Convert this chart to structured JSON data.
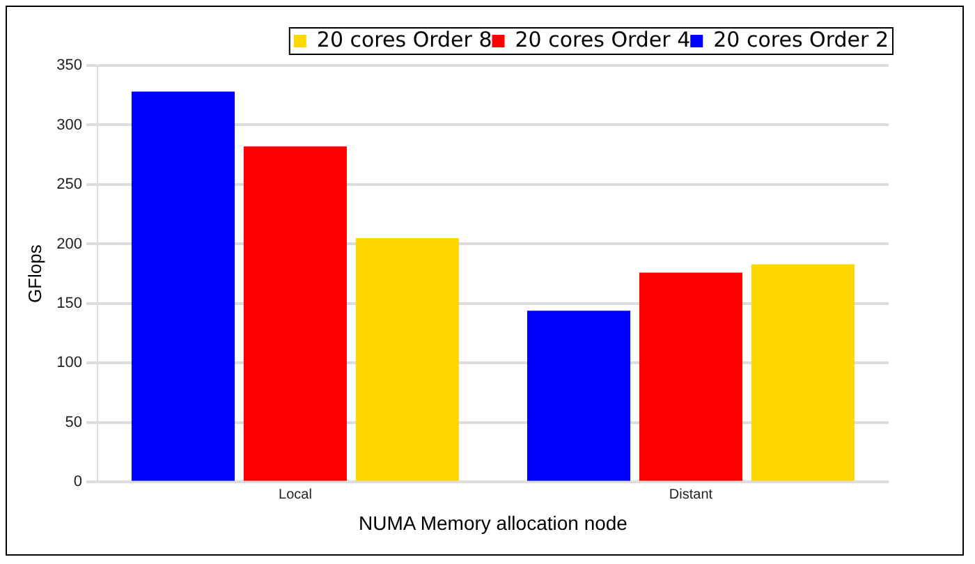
{
  "chart_data": {
    "type": "bar",
    "xlabel": "NUMA Memory allocation node",
    "ylabel": "GFlops",
    "categories": [
      "Local",
      "Distant"
    ],
    "series": [
      {
        "name": "20 cores Order 2",
        "color": "#0000ff",
        "values": [
          328,
          144
        ]
      },
      {
        "name": "20 cores Order 4",
        "color": "#ff0000",
        "values": [
          282,
          176
        ]
      },
      {
        "name": "20 cores Order 8",
        "color": "#ffd700",
        "values": [
          205,
          183
        ]
      }
    ],
    "ylim": [
      0,
      350
    ],
    "yticks": [
      0,
      50,
      100,
      150,
      200,
      250,
      300,
      350
    ],
    "grid": "y",
    "legend": "top right"
  }
}
